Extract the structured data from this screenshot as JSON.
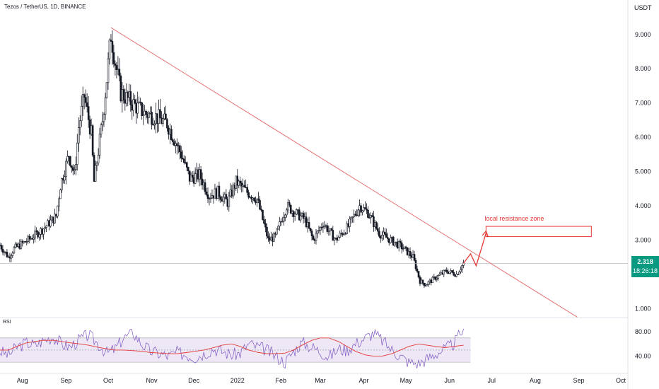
{
  "header": {
    "title": "Tezos / TetherUS, 1D, BINANCE",
    "currency": "USDT"
  },
  "price_badge": {
    "price": "2.318",
    "countdown": "18:26:18"
  },
  "rsi_label": "RSI",
  "colors": {
    "candle": "#131722",
    "trendline": "#e57373",
    "annotation": "#e53935",
    "rsi_line": "#7e57c2",
    "rsi_ma": "#e53935",
    "rsi_band": "#ede7f6",
    "badge": "#089981"
  },
  "chart_data": [
    {
      "type": "candlestick",
      "title": "Tezos / TetherUS, 1D, BINANCE",
      "y_axis_unit": "USDT",
      "ylim": [
        0.8,
        9.8
      ],
      "yticks": [
        "1.000",
        "2.000",
        "3.000",
        "4.000",
        "5.000",
        "6.000",
        "7.000",
        "8.000",
        "9.000"
      ],
      "xticks": [
        "Aug",
        "Sep",
        "Oct",
        "Nov",
        "Dec",
        "2022",
        "Feb",
        "Mar",
        "Apr",
        "May",
        "Jun",
        "Jul",
        "Aug",
        "Sep",
        "Oct"
      ],
      "xtick_dates": [
        "2021-08-01",
        "2021-09-01",
        "2021-10-01",
        "2021-11-01",
        "2021-12-01",
        "2022-01-01",
        "2022-02-01",
        "2022-03-01",
        "2022-04-01",
        "2022-05-01",
        "2022-06-01",
        "2022-07-01",
        "2022-08-01",
        "2022-09-01",
        "2022-10-01"
      ],
      "x_range": [
        "2021-07-16",
        "2022-10-06"
      ],
      "close_path": [
        [
          "2021-07-16",
          2.85
        ],
        [
          "2021-07-22",
          2.5
        ],
        [
          "2021-07-26",
          2.75
        ],
        [
          "2021-08-05",
          3.0
        ],
        [
          "2021-08-15",
          3.3
        ],
        [
          "2021-08-25",
          3.7
        ],
        [
          "2021-08-28",
          4.6
        ],
        [
          "2021-09-03",
          5.5
        ],
        [
          "2021-09-07",
          4.9
        ],
        [
          "2021-09-10",
          6.3
        ],
        [
          "2021-09-14",
          7.2
        ],
        [
          "2021-09-19",
          6.1
        ],
        [
          "2021-09-21",
          4.7
        ],
        [
          "2021-09-27",
          6.5
        ],
        [
          "2021-09-30",
          7.7
        ],
        [
          "2021-10-03",
          9.0
        ],
        [
          "2021-10-06",
          8.2
        ],
        [
          "2021-10-10",
          7.3
        ],
        [
          "2021-10-18",
          7.0
        ],
        [
          "2021-10-27",
          6.7
        ],
        [
          "2021-11-04",
          6.6
        ],
        [
          "2021-11-12",
          6.4
        ],
        [
          "2021-11-22",
          5.5
        ],
        [
          "2021-11-28",
          4.8
        ],
        [
          "2021-12-05",
          4.9
        ],
        [
          "2021-12-12",
          4.3
        ],
        [
          "2021-12-18",
          4.4
        ],
        [
          "2021-12-25",
          4.1
        ],
        [
          "2021-12-31",
          4.7
        ],
        [
          "2022-01-08",
          4.4
        ],
        [
          "2022-01-15",
          4.2
        ],
        [
          "2022-01-23",
          3.0
        ],
        [
          "2022-01-28",
          3.1
        ],
        [
          "2022-02-05",
          4.0
        ],
        [
          "2022-02-11",
          3.8
        ],
        [
          "2022-02-18",
          3.6
        ],
        [
          "2022-02-24",
          3.0
        ],
        [
          "2022-03-03",
          3.5
        ],
        [
          "2022-03-12",
          3.0
        ],
        [
          "2022-03-21",
          3.4
        ],
        [
          "2022-03-29",
          4.0
        ],
        [
          "2022-04-04",
          3.8
        ],
        [
          "2022-04-12",
          3.2
        ],
        [
          "2022-04-20",
          3.0
        ],
        [
          "2022-04-28",
          2.8
        ],
        [
          "2022-05-06",
          2.5
        ],
        [
          "2022-05-11",
          1.8
        ],
        [
          "2022-05-15",
          1.7
        ],
        [
          "2022-05-22",
          1.9
        ],
        [
          "2022-05-30",
          2.1
        ],
        [
          "2022-06-06",
          2.0
        ],
        [
          "2022-06-11",
          2.32
        ]
      ],
      "trendline": {
        "start": [
          "2021-10-03",
          9.2
        ],
        "end": [
          "2022-08-31",
          0.75
        ]
      },
      "projection_arrow": [
        [
          "2022-06-11",
          2.32
        ],
        [
          "2022-06-16",
          2.6
        ],
        [
          "2022-06-20",
          2.25
        ],
        [
          "2022-06-27",
          3.2
        ]
      ],
      "resistance_zone": {
        "label": "local resistance zone",
        "x": [
          "2022-06-27",
          "2022-09-10"
        ],
        "y": [
          3.1,
          3.4
        ]
      },
      "current_price": 2.318
    },
    {
      "type": "line",
      "title": "RSI",
      "ylim": [
        15,
        100
      ],
      "yticks": [
        "80.00",
        "40.00"
      ],
      "band": [
        30,
        70
      ],
      "midline": 50,
      "x_range": [
        "2021-07-16",
        "2022-06-11"
      ],
      "rsi_path": [
        48,
        42,
        55,
        62,
        58,
        66,
        72,
        60,
        55,
        68,
        75,
        62,
        45,
        52,
        70,
        78,
        60,
        48,
        44,
        40,
        46,
        42,
        38,
        44,
        52,
        48,
        42,
        45,
        60,
        55,
        50,
        40,
        30,
        48,
        62,
        55,
        48,
        38,
        52,
        50,
        60,
        70,
        78,
        66,
        50,
        40,
        30,
        28,
        35,
        44,
        52,
        60,
        85
      ],
      "rsi_ma_path": [
        50,
        50,
        56,
        62,
        64,
        66,
        66,
        64,
        62,
        60,
        58,
        55,
        52,
        50,
        50,
        49,
        48,
        46,
        45,
        44,
        44,
        46,
        48,
        50,
        54,
        58,
        60,
        56,
        50,
        46,
        44,
        44,
        45,
        50,
        58,
        66,
        70,
        70,
        64,
        56,
        48,
        42,
        40,
        40,
        44,
        50,
        56,
        60,
        58,
        56,
        54,
        56,
        58
      ]
    }
  ]
}
